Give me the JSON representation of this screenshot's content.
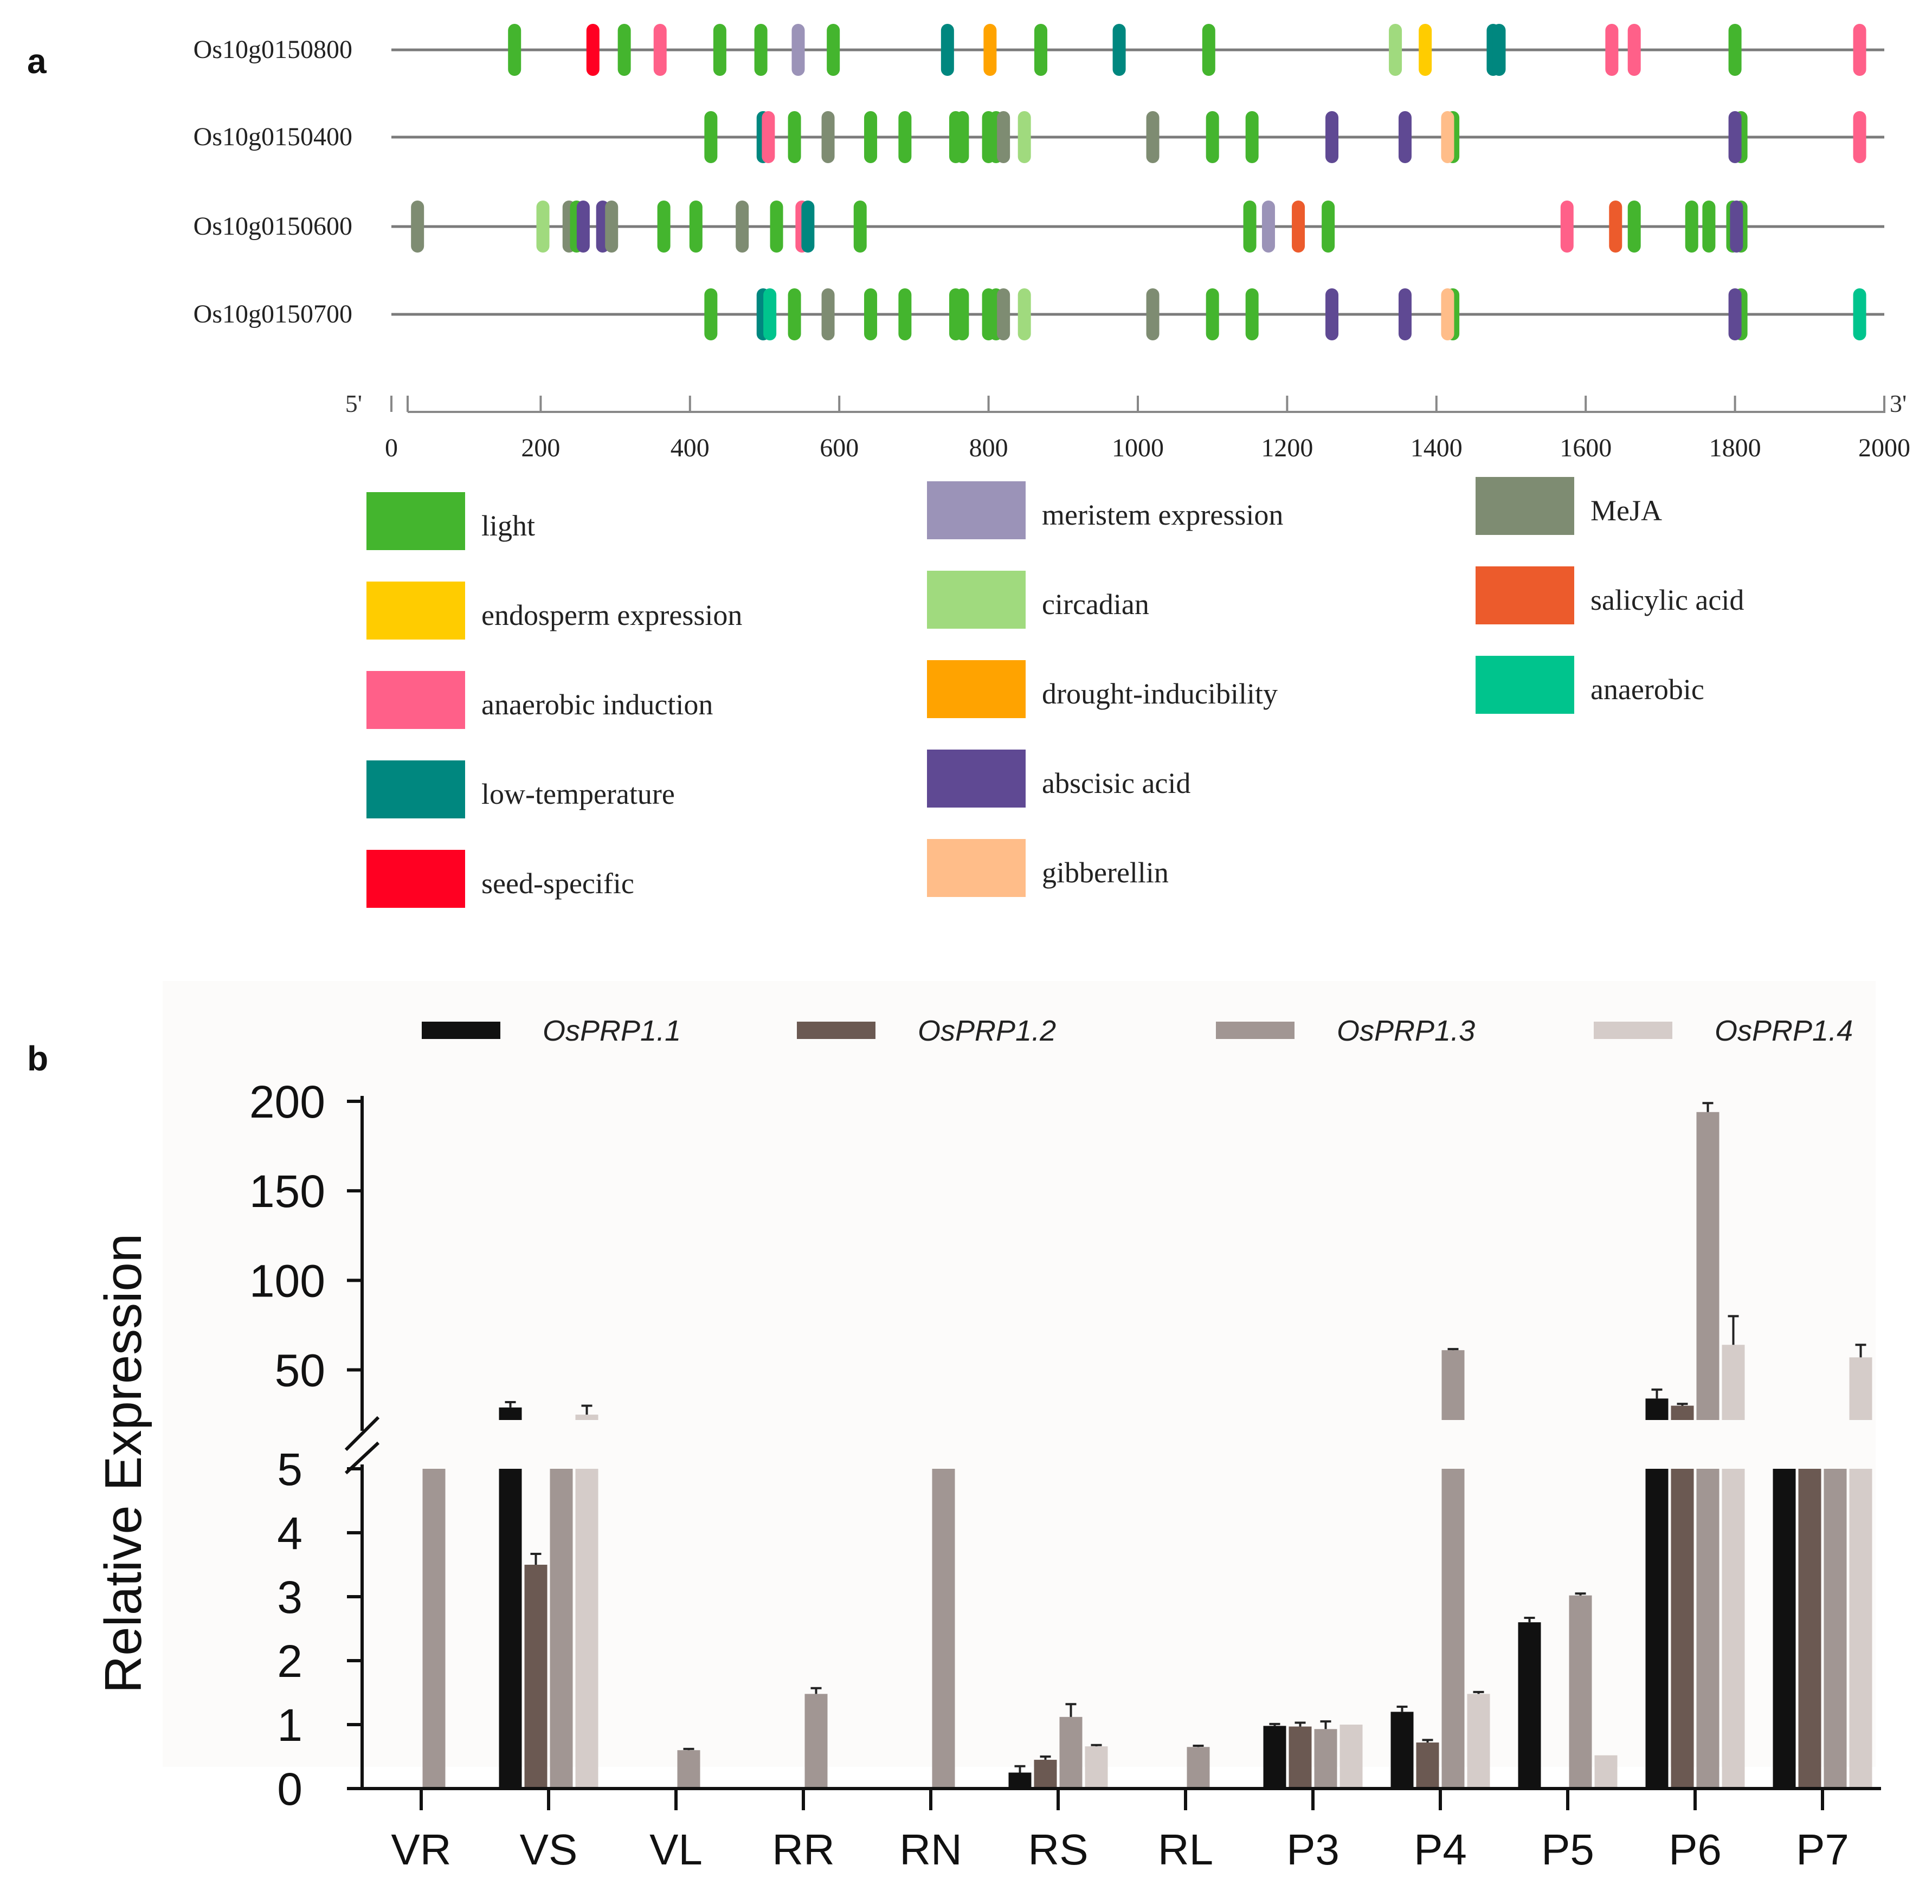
{
  "panel_a": {
    "label": "a",
    "chart_data": {
      "type": "promoter-element-map",
      "axis": {
        "min": 0,
        "max": 2000,
        "ticks": [
          0,
          200,
          400,
          600,
          800,
          1000,
          1200,
          1400,
          1600,
          1800,
          2000
        ],
        "start_label": "5'",
        "end_label": "3'"
      },
      "element_colors": {
        "light": "#44b52e",
        "endosperm expression": "#ffcc00",
        "anaerobic induction": "#ff6089",
        "low-temperature": "#00877f",
        "seed-specific": "#ff0022",
        "meristem expression": "#9b93b8",
        "circadian": "#a0da7e",
        "drought-inducibility": "#ffa300",
        "abscisic acid": "#5f4993",
        "gibberellin": "#ffbd89",
        "MeJA": "#7e8c72",
        "salicylic acid": "#ec5b2c",
        "anaerobic": "#00c48d"
      },
      "genes": [
        {
          "name": "Os10g0150800",
          "elements": [
            {
              "pos": 165,
              "type": "light"
            },
            {
              "pos": 270,
              "type": "seed-specific"
            },
            {
              "pos": 312,
              "type": "light"
            },
            {
              "pos": 360,
              "type": "anaerobic induction"
            },
            {
              "pos": 440,
              "type": "light"
            },
            {
              "pos": 495,
              "type": "light"
            },
            {
              "pos": 545,
              "type": "meristem expression"
            },
            {
              "pos": 592,
              "type": "light"
            },
            {
              "pos": 745,
              "type": "low-temperature"
            },
            {
              "pos": 802,
              "type": "drought-inducibility"
            },
            {
              "pos": 870,
              "type": "light"
            },
            {
              "pos": 975,
              "type": "low-temperature"
            },
            {
              "pos": 1095,
              "type": "light"
            },
            {
              "pos": 1345,
              "type": "circadian"
            },
            {
              "pos": 1385,
              "type": "endosperm expression"
            },
            {
              "pos": 1476,
              "type": "low-temperature"
            },
            {
              "pos": 1484,
              "type": "low-temperature"
            },
            {
              "pos": 1635,
              "type": "anaerobic induction"
            },
            {
              "pos": 1665,
              "type": "anaerobic induction"
            },
            {
              "pos": 1800,
              "type": "light"
            },
            {
              "pos": 1967,
              "type": "anaerobic induction"
            }
          ]
        },
        {
          "name": "Os10g0150400",
          "elements": [
            {
              "pos": 428,
              "type": "light"
            },
            {
              "pos": 498,
              "type": "low-temperature"
            },
            {
              "pos": 505,
              "type": "anaerobic induction"
            },
            {
              "pos": 540,
              "type": "light"
            },
            {
              "pos": 585,
              "type": "MeJA"
            },
            {
              "pos": 642,
              "type": "light"
            },
            {
              "pos": 688,
              "type": "light"
            },
            {
              "pos": 756,
              "type": "light"
            },
            {
              "pos": 765,
              "type": "light"
            },
            {
              "pos": 800,
              "type": "light"
            },
            {
              "pos": 810,
              "type": "light"
            },
            {
              "pos": 820,
              "type": "MeJA"
            },
            {
              "pos": 848,
              "type": "circadian"
            },
            {
              "pos": 1020,
              "type": "MeJA"
            },
            {
              "pos": 1100,
              "type": "light"
            },
            {
              "pos": 1153,
              "type": "light"
            },
            {
              "pos": 1260,
              "type": "abscisic acid"
            },
            {
              "pos": 1358,
              "type": "abscisic acid"
            },
            {
              "pos": 1422,
              "type": "light"
            },
            {
              "pos": 1415,
              "type": "gibberellin"
            },
            {
              "pos": 1808,
              "type": "light"
            },
            {
              "pos": 1800,
              "type": "abscisic acid"
            },
            {
              "pos": 1967,
              "type": "anaerobic induction"
            }
          ]
        },
        {
          "name": "Os10g0150600",
          "elements": [
            {
              "pos": 35,
              "type": "MeJA"
            },
            {
              "pos": 203,
              "type": "circadian"
            },
            {
              "pos": 238,
              "type": "MeJA"
            },
            {
              "pos": 248,
              "type": "light"
            },
            {
              "pos": 257,
              "type": "abscisic acid"
            },
            {
              "pos": 283,
              "type": "abscisic acid"
            },
            {
              "pos": 295,
              "type": "MeJA"
            },
            {
              "pos": 365,
              "type": "light"
            },
            {
              "pos": 408,
              "type": "light"
            },
            {
              "pos": 470,
              "type": "MeJA"
            },
            {
              "pos": 516,
              "type": "light"
            },
            {
              "pos": 550,
              "type": "anaerobic induction"
            },
            {
              "pos": 558,
              "type": "low-temperature"
            },
            {
              "pos": 628,
              "type": "light"
            },
            {
              "pos": 1150,
              "type": "light"
            },
            {
              "pos": 1175,
              "type": "meristem expression"
            },
            {
              "pos": 1215,
              "type": "salicylic acid"
            },
            {
              "pos": 1255,
              "type": "light"
            },
            {
              "pos": 1575,
              "type": "anaerobic induction"
            },
            {
              "pos": 1640,
              "type": "salicylic acid"
            },
            {
              "pos": 1665,
              "type": "light"
            },
            {
              "pos": 1742,
              "type": "light"
            },
            {
              "pos": 1765,
              "type": "light"
            },
            {
              "pos": 1797,
              "type": "light"
            },
            {
              "pos": 1808,
              "type": "light"
            },
            {
              "pos": 1802,
              "type": "abscisic acid"
            }
          ]
        },
        {
          "name": "Os10g0150700",
          "elements": [
            {
              "pos": 428,
              "type": "light"
            },
            {
              "pos": 498,
              "type": "low-temperature"
            },
            {
              "pos": 507,
              "type": "anaerobic"
            },
            {
              "pos": 540,
              "type": "light"
            },
            {
              "pos": 585,
              "type": "MeJA"
            },
            {
              "pos": 642,
              "type": "light"
            },
            {
              "pos": 688,
              "type": "light"
            },
            {
              "pos": 756,
              "type": "light"
            },
            {
              "pos": 765,
              "type": "light"
            },
            {
              "pos": 800,
              "type": "light"
            },
            {
              "pos": 810,
              "type": "light"
            },
            {
              "pos": 820,
              "type": "MeJA"
            },
            {
              "pos": 848,
              "type": "circadian"
            },
            {
              "pos": 1020,
              "type": "MeJA"
            },
            {
              "pos": 1100,
              "type": "light"
            },
            {
              "pos": 1153,
              "type": "light"
            },
            {
              "pos": 1260,
              "type": "abscisic acid"
            },
            {
              "pos": 1358,
              "type": "abscisic acid"
            },
            {
              "pos": 1422,
              "type": "light"
            },
            {
              "pos": 1415,
              "type": "gibberellin"
            },
            {
              "pos": 1808,
              "type": "light"
            },
            {
              "pos": 1800,
              "type": "abscisic acid"
            },
            {
              "pos": 1967,
              "type": "anaerobic"
            }
          ]
        }
      ],
      "legend": [
        [
          "light",
          "endosperm expression",
          "anaerobic induction",
          "low-temperature",
          "seed-specific"
        ],
        [
          "meristem expression",
          "circadian",
          "drought-inducibility",
          "abscisic acid",
          "gibberellin"
        ],
        [
          "MeJA",
          "salicylic acid",
          "anaerobic"
        ]
      ]
    }
  },
  "panel_b": {
    "label": "b",
    "chart_data": {
      "type": "bar",
      "ylabel": "Relative Expression",
      "xlabel": "",
      "categories": [
        "VR",
        "VS",
        "VL",
        "RR",
        "RN",
        "RS",
        "RL",
        "P3",
        "P4",
        "P5",
        "P6",
        "P7"
      ],
      "y_axis": {
        "broken": true,
        "lower_range": [
          0,
          5
        ],
        "lower_ticks": [
          "0",
          "1",
          "2",
          "3",
          "4",
          "5"
        ],
        "upper_range": [
          22,
          200
        ],
        "upper_ticks": [
          "50",
          "100",
          "150",
          "200"
        ]
      },
      "series": [
        {
          "name": "OsPRP1.1",
          "color": "#111111",
          "values": [
            0,
            29,
            0,
            0,
            0,
            0.25,
            0,
            0.98,
            1.2,
            2.6,
            34,
            22
          ],
          "errors": [
            0,
            3,
            0,
            0,
            0,
            0.1,
            0,
            0.03,
            0.08,
            0.07,
            5,
            0
          ]
        },
        {
          "name": "OsPRP1.2",
          "color": "#6b5952",
          "values": [
            0,
            3.5,
            0,
            0,
            0,
            0.45,
            0,
            0.97,
            0.72,
            0,
            30,
            8
          ],
          "errors": [
            0,
            0.17,
            0,
            0,
            0,
            0.05,
            0,
            0.06,
            0.04,
            0,
            1,
            0
          ]
        },
        {
          "name": "OsPRP1.3",
          "color": "#a19693",
          "values": [
            8,
            10,
            0.6,
            1.48,
            6,
            1.12,
            0.65,
            0.93,
            61,
            3.02,
            194,
            8
          ],
          "errors": [
            0,
            0,
            0.02,
            0.09,
            0,
            0.2,
            0.02,
            0.12,
            0.6,
            0.03,
            5,
            0
          ]
        },
        {
          "name": "OsPRP1.4",
          "color": "#d5ccc9",
          "values": [
            0,
            25,
            0,
            0,
            0,
            0.66,
            0,
            1.0,
            1.48,
            0.52,
            64,
            57
          ],
          "errors": [
            0,
            5,
            0,
            0,
            0,
            0.02,
            0,
            0,
            0.03,
            0,
            16,
            7
          ]
        }
      ]
    }
  }
}
